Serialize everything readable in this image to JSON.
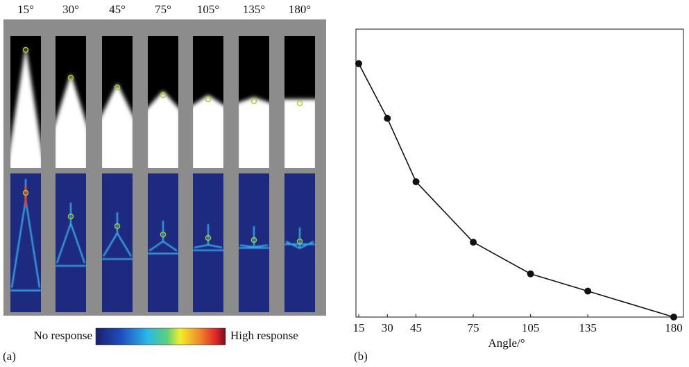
{
  "panel_a": {
    "angle_labels": [
      "15°",
      "30°",
      "45°",
      "75°",
      "105°",
      "135°",
      "180°"
    ],
    "colorbar": {
      "low_label": "No response",
      "high_label": "High response"
    },
    "label": "(a)"
  },
  "chart_data": {
    "type": "line",
    "x_label": "Angle/°",
    "x": [
      15,
      30,
      45,
      75,
      105,
      135,
      180
    ],
    "series": [
      {
        "color": "#111111",
        "values": [
          0.88,
          0.69,
          0.47,
          0.26,
          0.15,
          0.09,
          0.0
        ]
      }
    ],
    "xlim": [
      15,
      180
    ],
    "xticks": [
      15,
      30,
      45,
      75,
      105,
      135,
      180
    ],
    "ylim": [
      0,
      1
    ],
    "panel_label": "(b)"
  }
}
